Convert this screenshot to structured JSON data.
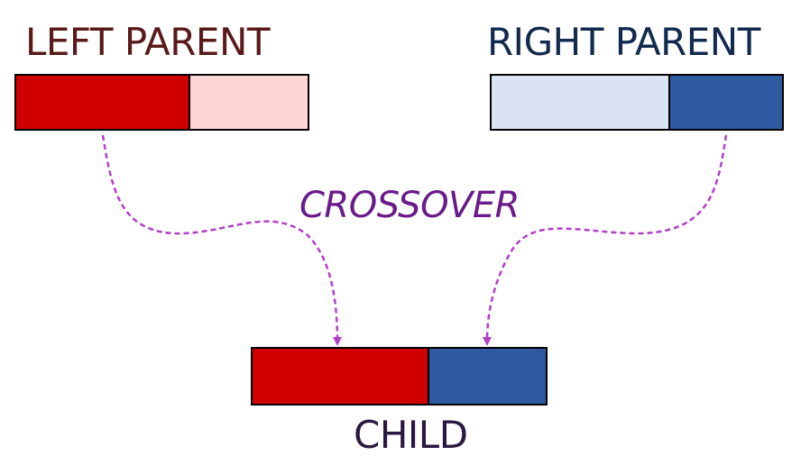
{
  "labels": {
    "left_parent": "LEFT PARENT",
    "right_parent": "RIGHT PARENT",
    "crossover": "CROSSOVER",
    "child": "CHILD"
  },
  "colors": {
    "left_dominant": "#d00000",
    "left_recessive": "#ffd6d6",
    "right_recessive": "#d9e3f3",
    "right_dominant": "#2d5aa0",
    "arrow": "#b23fc7",
    "outline": "#000000",
    "left_title": "#5a1a1a",
    "right_title": "#122a4e",
    "crossover_label": "#6a1b8a",
    "child_title": "#2b1840"
  }
}
